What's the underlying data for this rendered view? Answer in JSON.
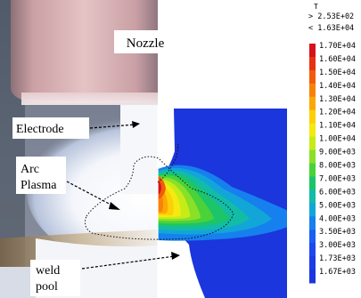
{
  "labels": {
    "nozzle": "Nozzle",
    "electrode": "Electrode",
    "arc_plasma_line1": "Arc",
    "arc_plasma_line2": "Plasma",
    "weld_pool_line1": "weld",
    "weld_pool_line2": "pool"
  },
  "legend": {
    "variable": "T",
    "above": "> 2.53E+02",
    "below": "< 1.63E+04",
    "levels": [
      {
        "label": "1.70E+04",
        "color": "#d4141a"
      },
      {
        "label": "1.60E+04",
        "color": "#e63212"
      },
      {
        "label": "1.50E+04",
        "color": "#f25a0c"
      },
      {
        "label": "1.40E+04",
        "color": "#f78208"
      },
      {
        "label": "1.30E+04",
        "color": "#fba806"
      },
      {
        "label": "1.20E+04",
        "color": "#fdd006"
      },
      {
        "label": "1.10E+04",
        "color": "#f2ea10"
      },
      {
        "label": "1.00E+04",
        "color": "#c6ec18"
      },
      {
        "label": "9.00E+03",
        "color": "#8ae028"
      },
      {
        "label": "8.00E+03",
        "color": "#4ad23a"
      },
      {
        "label": "7.00E+03",
        "color": "#1cc46a"
      },
      {
        "label": "6.00E+03",
        "color": "#12bca6"
      },
      {
        "label": "5.00E+03",
        "color": "#12a6d8"
      },
      {
        "label": "4.00E+03",
        "color": "#1680ee"
      },
      {
        "label": "3.50E+03",
        "color": "#1a5ef2"
      },
      {
        "label": "3.00E+03",
        "color": "#1c48ee"
      },
      {
        "label": "1.73E+03",
        "color": "#1c3ce6"
      },
      {
        "label": "1.67E+03",
        "color": "#1a36dc"
      }
    ]
  }
}
